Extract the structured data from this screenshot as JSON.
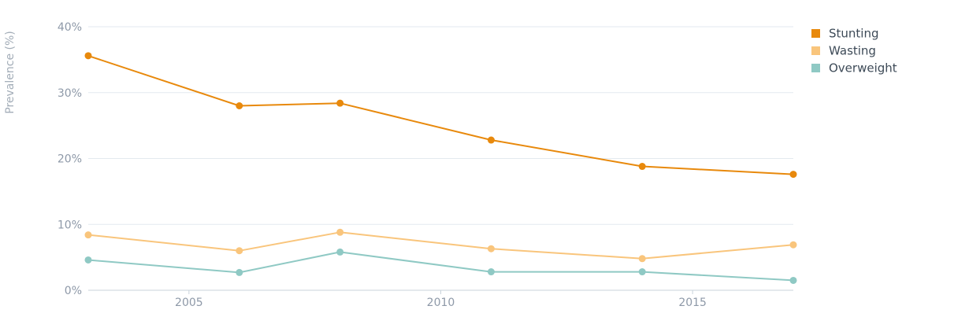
{
  "chart_data": {
    "type": "line",
    "ylabel": "Prevalence (%)",
    "xlabel": "",
    "title": "",
    "ylim": [
      0,
      40
    ],
    "xlim": [
      2003,
      2017
    ],
    "y_ticks": [
      0,
      10,
      20,
      30,
      40
    ],
    "y_tick_labels": [
      "0%",
      "10%",
      "20%",
      "30%",
      "40%"
    ],
    "x_ticks": [
      2005,
      2010,
      2015
    ],
    "x_tick_labels": [
      "2005",
      "2010",
      "2015"
    ],
    "grid": "horizontal",
    "legend_position": "top-right",
    "series": [
      {
        "name": "Stunting",
        "color": "#e8890c",
        "x": [
          2003,
          2006,
          2008,
          2011,
          2014,
          2017
        ],
        "values": [
          35.6,
          28.0,
          28.4,
          22.8,
          18.8,
          17.6
        ]
      },
      {
        "name": "Wasting",
        "color": "#f9c57c",
        "x": [
          2003,
          2006,
          2008,
          2011,
          2014,
          2017
        ],
        "values": [
          8.4,
          6.0,
          8.8,
          6.3,
          4.8,
          6.9
        ]
      },
      {
        "name": "Overweight",
        "color": "#8fc9c4",
        "x": [
          2003,
          2006,
          2008,
          2011,
          2014,
          2017
        ],
        "values": [
          4.6,
          2.7,
          5.8,
          2.8,
          2.8,
          1.5
        ]
      }
    ]
  }
}
